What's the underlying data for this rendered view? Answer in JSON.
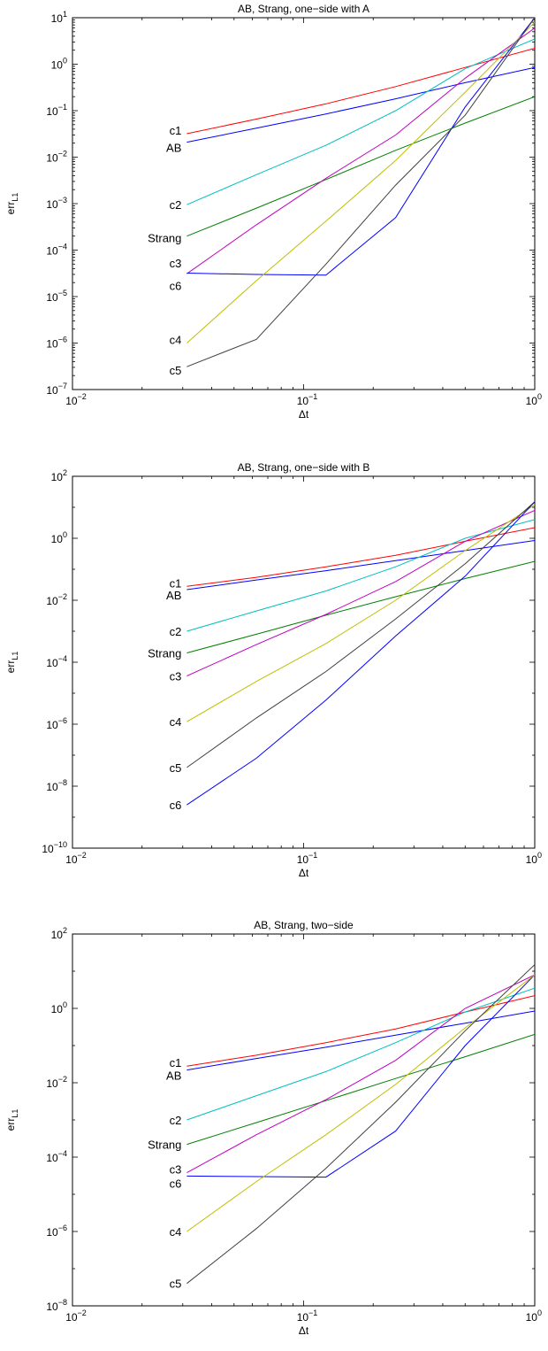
{
  "chart_data": [
    {
      "type": "line",
      "title": "AB, Strang, one−side with A",
      "xlabel": "Δt",
      "ylabel": "err",
      "ylabel_sub": "L1",
      "xscale": "log",
      "yscale": "log",
      "xlim": [
        0.01,
        1
      ],
      "ylim": [
        1e-07,
        10
      ],
      "x_ticks": [
        0.01,
        0.1,
        1
      ],
      "x_tick_labels": [
        [
          "10",
          "−2"
        ],
        [
          "10",
          "−1"
        ],
        [
          "10",
          "0"
        ]
      ],
      "y_ticks": [
        1e-07,
        1e-06,
        1e-05,
        0.0001,
        0.001,
        0.01,
        0.1,
        1,
        10
      ],
      "y_tick_labels": [
        [
          "10",
          "−7"
        ],
        [
          "10",
          "−6"
        ],
        [
          "10",
          "−5"
        ],
        [
          "10",
          "−4"
        ],
        [
          "10",
          "−3"
        ],
        [
          "10",
          "−2"
        ],
        [
          "10",
          "−1"
        ],
        [
          "10",
          "0"
        ],
        [
          "10",
          "1"
        ]
      ],
      "grid": false,
      "legend": "labels at left end of each line",
      "x": [
        0.03125,
        0.0625,
        0.125,
        0.25,
        0.5,
        1
      ],
      "series": [
        {
          "name": "c1",
          "color": "#ff0000",
          "values": [
            0.032,
            0.066,
            0.14,
            0.33,
            0.85,
            2.2
          ]
        },
        {
          "name": "AB",
          "color": "#0000ff",
          "values": [
            0.021,
            0.042,
            0.085,
            0.18,
            0.4,
            0.85
          ]
        },
        {
          "name": "c2",
          "color": "#00bfbf",
          "values": [
            0.00095,
            0.0042,
            0.018,
            0.1,
            0.8,
            3.5
          ]
        },
        {
          "name": "Strang",
          "color": "#007f00",
          "values": [
            0.0002,
            0.0008,
            0.0033,
            0.014,
            0.054,
            0.2
          ]
        },
        {
          "name": "c3",
          "color": "#bf00bf",
          "values": [
            3.1e-05,
            0.00035,
            0.0035,
            0.03,
            0.5,
            6
          ]
        },
        {
          "name": "c6",
          "color": "#0000ff",
          "values": [
            3.2e-05,
            3e-05,
            2.9e-05,
            0.0005,
            0.12,
            10
          ]
        },
        {
          "name": "c4",
          "color": "#bfbf00",
          "values": [
            1e-06,
            2.2e-05,
            0.00042,
            0.0085,
            0.25,
            8
          ]
        },
        {
          "name": "c5",
          "color": "#404040",
          "values": [
            3.1e-07,
            1.2e-06,
            5e-05,
            0.0025,
            0.08,
            10
          ]
        }
      ]
    },
    {
      "type": "line",
      "title": "AB, Strang, one−side with B",
      "xlabel": "Δt",
      "ylabel": "err",
      "ylabel_sub": "L1",
      "xscale": "log",
      "yscale": "log",
      "xlim": [
        0.01,
        1
      ],
      "ylim": [
        1e-10,
        100
      ],
      "x_ticks": [
        0.01,
        0.1,
        1
      ],
      "x_tick_labels": [
        [
          "10",
          "−2"
        ],
        [
          "10",
          "−1"
        ],
        [
          "10",
          "0"
        ]
      ],
      "y_ticks": [
        1e-10,
        1e-08,
        1e-06,
        0.0001,
        0.01,
        1,
        100
      ],
      "y_tick_labels": [
        [
          "10",
          "−10"
        ],
        [
          "10",
          "−8"
        ],
        [
          "10",
          "−6"
        ],
        [
          "10",
          "−4"
        ],
        [
          "10",
          "−2"
        ],
        [
          "10",
          "0"
        ],
        [
          "10",
          "2"
        ]
      ],
      "grid": false,
      "legend": "labels at left end of each line",
      "x": [
        0.03125,
        0.0625,
        0.125,
        0.25,
        0.5,
        1
      ],
      "series": [
        {
          "name": "c1",
          "color": "#ff0000",
          "values": [
            0.028,
            0.055,
            0.12,
            0.28,
            0.8,
            2.2
          ]
        },
        {
          "name": "AB",
          "color": "#0000ff",
          "values": [
            0.022,
            0.045,
            0.09,
            0.19,
            0.4,
            0.85
          ]
        },
        {
          "name": "c2",
          "color": "#00bfbf",
          "values": [
            0.001,
            0.0045,
            0.02,
            0.12,
            1.0,
            4
          ]
        },
        {
          "name": "Strang",
          "color": "#007f00",
          "values": [
            0.0002,
            0.0008,
            0.0033,
            0.013,
            0.05,
            0.18
          ]
        },
        {
          "name": "c3",
          "color": "#bf00bf",
          "values": [
            3.6e-05,
            0.00037,
            0.0035,
            0.04,
            0.8,
            8
          ]
        },
        {
          "name": "c4",
          "color": "#bfbf00",
          "values": [
            1.2e-06,
            2.4e-05,
            0.0004,
            0.01,
            0.4,
            12
          ]
        },
        {
          "name": "c5",
          "color": "#404040",
          "values": [
            4e-08,
            1.6e-06,
            5e-05,
            0.0025,
            0.15,
            15
          ]
        },
        {
          "name": "c6",
          "color": "#0000ff",
          "values": [
            2.5e-09,
            8e-08,
            6e-06,
            0.0007,
            0.06,
            15
          ]
        }
      ]
    },
    {
      "type": "line",
      "title": "AB, Strang, two−side",
      "xlabel": "Δt",
      "ylabel": "err",
      "ylabel_sub": "L1",
      "xscale": "log",
      "yscale": "log",
      "xlim": [
        0.01,
        1
      ],
      "ylim": [
        1e-08,
        100
      ],
      "x_ticks": [
        0.01,
        0.1,
        1
      ],
      "x_tick_labels": [
        [
          "10",
          "−2"
        ],
        [
          "10",
          "−1"
        ],
        [
          "10",
          "0"
        ]
      ],
      "y_ticks": [
        1e-08,
        1e-06,
        0.0001,
        0.01,
        1,
        100
      ],
      "y_tick_labels": [
        [
          "10",
          "−8"
        ],
        [
          "10",
          "−6"
        ],
        [
          "10",
          "−4"
        ],
        [
          "10",
          "−2"
        ],
        [
          "10",
          "0"
        ],
        [
          "10",
          "2"
        ]
      ],
      "grid": false,
      "legend": "labels at left end of each line",
      "x": [
        0.03125,
        0.0625,
        0.125,
        0.25,
        0.5,
        1
      ],
      "series": [
        {
          "name": "c1",
          "color": "#ff0000",
          "values": [
            0.028,
            0.055,
            0.12,
            0.28,
            0.8,
            2.2
          ]
        },
        {
          "name": "AB",
          "color": "#0000ff",
          "values": [
            0.022,
            0.045,
            0.09,
            0.19,
            0.4,
            0.85
          ]
        },
        {
          "name": "c2",
          "color": "#00bfbf",
          "values": [
            0.001,
            0.0045,
            0.02,
            0.12,
            0.8,
            3.5
          ]
        },
        {
          "name": "Strang",
          "color": "#007f00",
          "values": [
            0.00022,
            0.00085,
            0.0033,
            0.013,
            0.05,
            0.2
          ]
        },
        {
          "name": "c3",
          "color": "#bf00bf",
          "values": [
            3.8e-05,
            0.0004,
            0.0035,
            0.04,
            1.0,
            8
          ]
        },
        {
          "name": "c6",
          "color": "#0000ff",
          "values": [
            3.1e-05,
            3e-05,
            2.9e-05,
            0.0005,
            0.1,
            8
          ]
        },
        {
          "name": "c4",
          "color": "#bfbf00",
          "values": [
            1e-06,
            2.2e-05,
            0.0004,
            0.009,
            0.3,
            8
          ]
        },
        {
          "name": "c5",
          "color": "#404040",
          "values": [
            4e-08,
            1.2e-06,
            5e-05,
            0.003,
            0.25,
            15
          ]
        }
      ]
    }
  ]
}
